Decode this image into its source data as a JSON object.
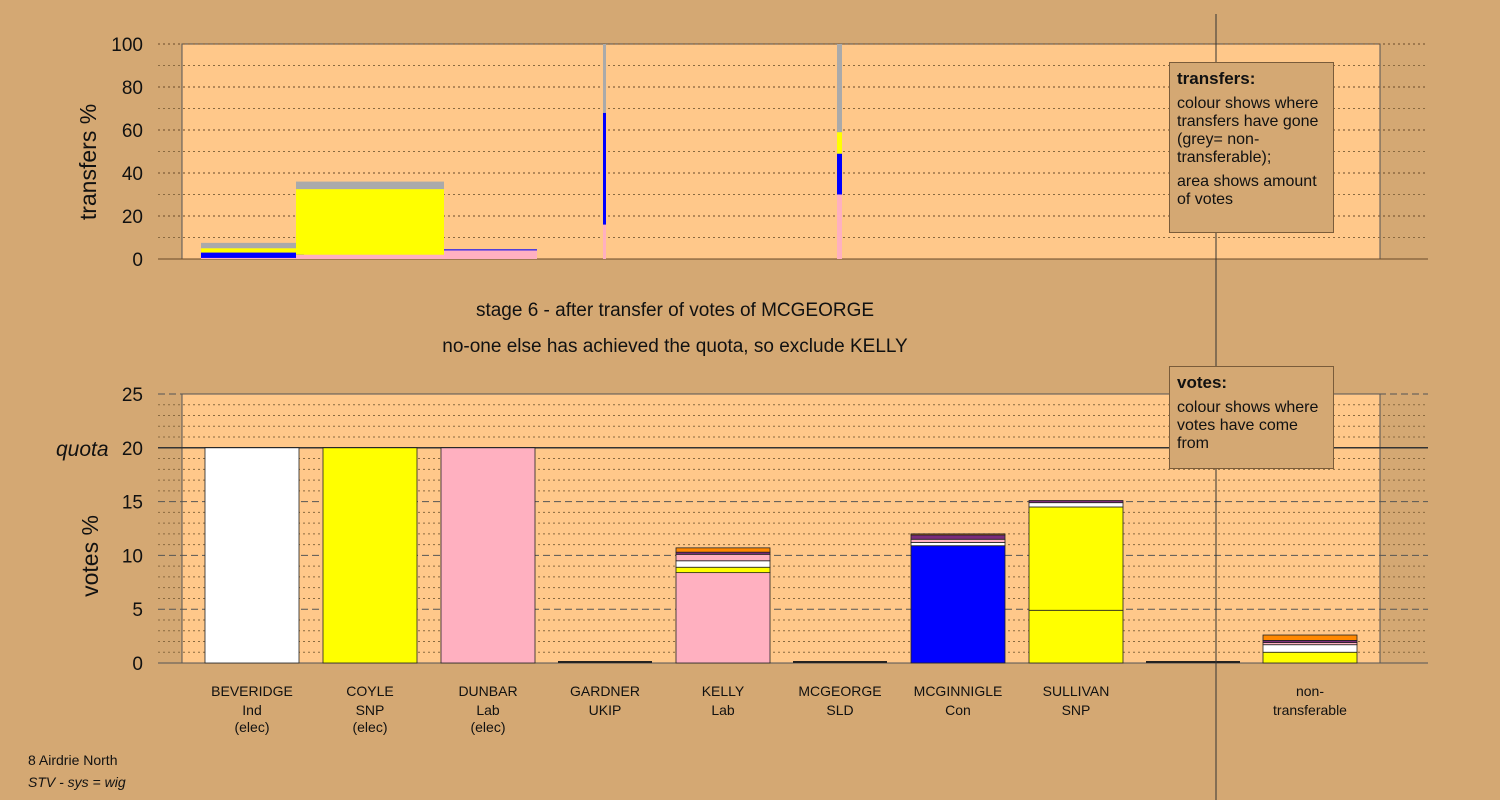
{
  "colors": {
    "background": "#d4a873",
    "panel": "#ffc88a",
    "Ind": "#ffffff",
    "SNP": "#ffff00",
    "Lab": "#ffb0c0",
    "UKIP": "#7b2c7b",
    "SLD": "#ff8800",
    "Con": "#0000ff",
    "nontransferable": "#aaaaaa"
  },
  "titles": {
    "line1": "stage 6 - after transfer of votes of MCGEORGE",
    "line2": "no-one else has achieved the quota, so exclude KELLY"
  },
  "legends": {
    "transfers": {
      "title": "transfers:",
      "p1": "colour shows where transfers have gone (grey= non-transferable);",
      "p2": "area shows amount of votes"
    },
    "votes": {
      "title": "votes:",
      "p1": "colour shows where votes have come from"
    }
  },
  "footer": {
    "line1": "8 Airdrie North",
    "line2": "STV - sys = wig"
  },
  "chart_data": [
    {
      "type": "bar",
      "name": "transfers",
      "ylabel": "transfers %",
      "ylim": [
        0,
        100
      ],
      "yticks": [
        0,
        20,
        40,
        60,
        80,
        100
      ],
      "columns": [
        {
          "candidate": "BEVERIDGE",
          "segments": [
            {
              "party": "Lab",
              "value": 0.5
            },
            {
              "party": "Con",
              "value": 2.5
            },
            {
              "party": "SNP",
              "value": 2
            },
            {
              "party": "nontransferable",
              "value": 2.5
            }
          ]
        },
        {
          "candidate": "COYLE",
          "segments": [
            {
              "party": "Lab",
              "value": 2
            },
            {
              "party": "SNP",
              "value": 30.5
            },
            {
              "party": "nontransferable",
              "value": 3.5
            }
          ]
        },
        {
          "candidate": "DUNBAR",
          "segments": [
            {
              "party": "Lab",
              "value": 4
            },
            {
              "party": "Con",
              "value": 0.5
            }
          ]
        },
        {
          "candidate": "GARDNER",
          "segments": [
            {
              "party": "Lab",
              "value": 16
            },
            {
              "party": "Con",
              "value": 52
            },
            {
              "party": "nontransferable",
              "value": 32
            }
          ]
        },
        {
          "candidate": "MCGEORGE",
          "segments": [
            {
              "party": "Lab",
              "value": 30
            },
            {
              "party": "Con",
              "value": 19
            },
            {
              "party": "SNP",
              "value": 10
            },
            {
              "party": "nontransferable",
              "value": 41
            }
          ]
        }
      ]
    },
    {
      "type": "bar",
      "name": "votes",
      "ylabel": "votes %",
      "ylim": [
        0,
        25
      ],
      "yticks": [
        0,
        5,
        10,
        15,
        20,
        25
      ],
      "quota": 20,
      "quota_label": "quota",
      "categories": [
        {
          "name": "BEVERIDGE",
          "party": "Ind",
          "note": "(elec)"
        },
        {
          "name": "COYLE",
          "party": "SNP",
          "note": "(elec)"
        },
        {
          "name": "DUNBAR",
          "party": "Lab",
          "note": "(elec)"
        },
        {
          "name": "GARDNER",
          "party": "UKIP",
          "note": ""
        },
        {
          "name": "KELLY",
          "party": "Lab",
          "note": ""
        },
        {
          "name": "MCGEORGE",
          "party": "SLD",
          "note": ""
        },
        {
          "name": "MCGINNIGLE",
          "party": "Con",
          "note": ""
        },
        {
          "name": "SULLIVAN",
          "party": "SNP",
          "note": ""
        },
        {
          "name": "non-",
          "party": "transferable",
          "note": ""
        }
      ],
      "stacks": [
        [
          {
            "party": "Ind",
            "value": 20
          }
        ],
        [
          {
            "party": "SNP",
            "value": 20
          }
        ],
        [
          {
            "party": "Lab",
            "value": 20
          }
        ],
        [],
        [
          {
            "party": "Lab",
            "value": 8.4
          },
          {
            "party": "SNP",
            "value": 0.5
          },
          {
            "party": "Ind",
            "value": 0.6
          },
          {
            "party": "Lab",
            "value": 0.6
          },
          {
            "party": "UKIP",
            "value": 0.2
          },
          {
            "party": "SLD",
            "value": 0.4
          }
        ],
        [],
        [
          {
            "party": "Con",
            "value": 10.9
          },
          {
            "party": "Ind",
            "value": 0.3
          },
          {
            "party": "Lab",
            "value": 0.3
          },
          {
            "party": "UKIP",
            "value": 0.4
          },
          {
            "party": "SLD",
            "value": 0.1
          }
        ],
        [
          {
            "party": "SNP",
            "value": 4.9
          },
          {
            "party": "SNP",
            "value": 9.6
          },
          {
            "party": "Ind",
            "value": 0.4
          },
          {
            "party": "UKIP",
            "value": 0.2
          }
        ],
        [
          {
            "party": "SNP",
            "value": 1.0
          },
          {
            "party": "Ind",
            "value": 0.7
          },
          {
            "party": "Lab",
            "value": 0.2
          },
          {
            "party": "UKIP",
            "value": 0.2
          },
          {
            "party": "SLD",
            "value": 0.5
          }
        ]
      ]
    }
  ]
}
